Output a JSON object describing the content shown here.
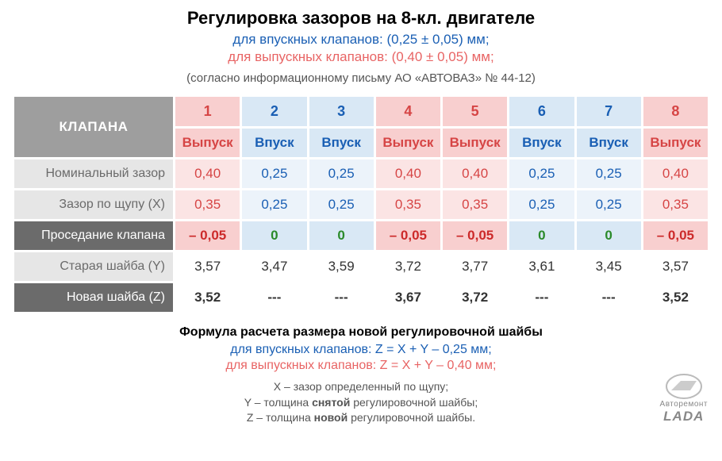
{
  "header": {
    "title": "Регулировка зазоров на 8-кл. двигателе",
    "intake_line": "для впускных клапанов: (0,25 ± 0,05) мм;",
    "exhaust_line": "для выпускных клапанов: (0,40 ± 0,05) мм;",
    "source_note": "(согласно информационному письму АО «АВТОВАЗ» № 44-12)"
  },
  "table": {
    "header_label": "КЛАПАНА",
    "valve_numbers": [
      "1",
      "2",
      "3",
      "4",
      "5",
      "6",
      "7",
      "8"
    ],
    "valve_kind": [
      "exhaust",
      "intake",
      "intake",
      "exhaust",
      "exhaust",
      "intake",
      "intake",
      "exhaust"
    ],
    "valve_type_labels": {
      "exhaust": "Выпуск",
      "intake": "Впуск"
    },
    "rows": [
      {
        "label": "Номинальный зазор",
        "style": "light",
        "cells": [
          "0,40",
          "0,25",
          "0,25",
          "0,40",
          "0,40",
          "0,25",
          "0,25",
          "0,40"
        ],
        "mode": "tinted"
      },
      {
        "label": "Зазор по щупу (X)",
        "style": "light",
        "cells": [
          "0,35",
          "0,25",
          "0,25",
          "0,35",
          "0,35",
          "0,25",
          "0,25",
          "0,35"
        ],
        "mode": "tinted"
      },
      {
        "label": "Проседание клапана",
        "style": "dark",
        "cells": [
          "– 0,05",
          "0",
          "0",
          "– 0,05",
          "– 0,05",
          "0",
          "0",
          "– 0,05"
        ],
        "mode": "prosed"
      },
      {
        "label": "Старая шайба (Y)",
        "style": "light",
        "cells": [
          "3,57",
          "3,47",
          "3,59",
          "3,72",
          "3,77",
          "3,61",
          "3,45",
          "3,57"
        ],
        "mode": "white"
      },
      {
        "label": "Новая шайба (Z)",
        "style": "dark",
        "cells": [
          "3,52",
          "---",
          "---",
          "3,67",
          "3,72",
          "---",
          "---",
          "3,52"
        ],
        "mode": "whitebold"
      }
    ]
  },
  "formula": {
    "title": "Формула расчета размера новой регулировочной шайбы",
    "intake": "для впускных клапанов: Z = X + Y – 0,25 мм;",
    "exhaust": "для выпускных клапанов: Z = X + Y – 0,40 мм;"
  },
  "legend_html": "X – зазор определенный по щупу;<br>Y – толщина <b>снятой</b> регулировочной шайбы;<br>Z – толщина <b>новой</b> регулировочной шайбы.",
  "logo": {
    "line1": "Авторемонт",
    "line2": "LADA"
  },
  "colors": {
    "blue_text": "#1a5fb4",
    "coral_text": "#e86464",
    "num_coral_bg": "#f8cfcf",
    "num_blue_bg": "#d9e8f5",
    "val_coral_l": "#fbe4e4",
    "val_blue_l": "#ecf3fa",
    "hdr_gray": "#9e9e9e",
    "rowlbl_lgray": "#e6e6e6",
    "rowlbl_dgray": "#6b6b6b",
    "prosed_neg_text": "#cc2a2a",
    "prosed_zero_text": "#2a8a2a"
  }
}
